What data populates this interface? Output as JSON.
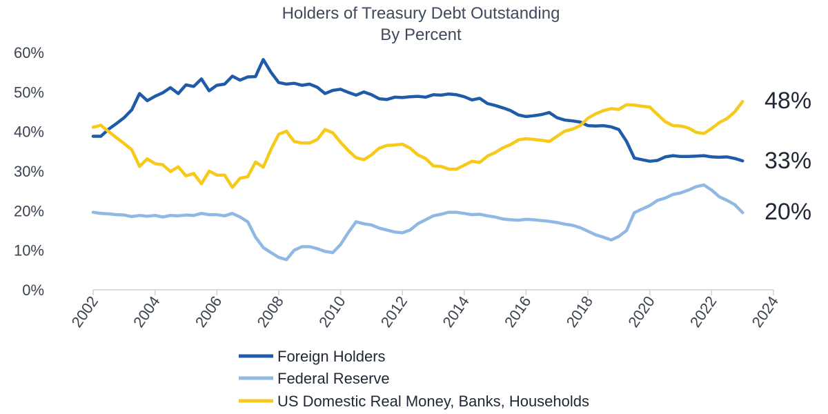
{
  "chart_data": {
    "type": "line",
    "title": "Holders of Treasury Debt Outstanding",
    "subtitle": "By Percent",
    "xlabel": "",
    "ylabel": "",
    "xlim": [
      2002,
      2024
    ],
    "ylim": [
      0,
      60
    ],
    "y_ticks": [
      "0%",
      "10%",
      "20%",
      "30%",
      "40%",
      "50%",
      "60%"
    ],
    "x_ticks": [
      "2002",
      "2004",
      "2006",
      "2008",
      "2010",
      "2012",
      "2014",
      "2016",
      "2018",
      "2020",
      "2022",
      "2024"
    ],
    "grid": false,
    "legend_position": "bottom",
    "series": [
      {
        "name": "Foreign Holders",
        "color": "#1f5ba8",
        "end_label": "33%",
        "points": [
          [
            2002.0,
            38.8
          ],
          [
            2002.25,
            38.8
          ],
          [
            2002.5,
            40.6
          ],
          [
            2002.75,
            42.0
          ],
          [
            2003.0,
            43.5
          ],
          [
            2003.25,
            45.5
          ],
          [
            2003.5,
            49.6
          ],
          [
            2003.75,
            47.8
          ],
          [
            2004.0,
            48.9
          ],
          [
            2004.25,
            49.8
          ],
          [
            2004.5,
            51.1
          ],
          [
            2004.75,
            49.6
          ],
          [
            2005.0,
            51.8
          ],
          [
            2005.25,
            51.4
          ],
          [
            2005.5,
            53.3
          ],
          [
            2005.75,
            50.3
          ],
          [
            2006.0,
            51.7
          ],
          [
            2006.25,
            52.0
          ],
          [
            2006.5,
            54.0
          ],
          [
            2006.75,
            53.0
          ],
          [
            2007.0,
            53.8
          ],
          [
            2007.25,
            53.9
          ],
          [
            2007.5,
            58.2
          ],
          [
            2007.75,
            55.0
          ],
          [
            2008.0,
            52.4
          ],
          [
            2008.25,
            52.0
          ],
          [
            2008.5,
            52.2
          ],
          [
            2008.75,
            51.7
          ],
          [
            2009.0,
            52.0
          ],
          [
            2009.25,
            51.2
          ],
          [
            2009.5,
            49.6
          ],
          [
            2009.75,
            50.4
          ],
          [
            2010.0,
            50.7
          ],
          [
            2010.25,
            49.9
          ],
          [
            2010.5,
            49.2
          ],
          [
            2010.75,
            50.0
          ],
          [
            2011.0,
            49.3
          ],
          [
            2011.25,
            48.3
          ],
          [
            2011.5,
            48.1
          ],
          [
            2011.75,
            48.7
          ],
          [
            2012.0,
            48.6
          ],
          [
            2012.25,
            48.8
          ],
          [
            2012.5,
            48.9
          ],
          [
            2012.75,
            48.7
          ],
          [
            2013.0,
            49.3
          ],
          [
            2013.25,
            49.2
          ],
          [
            2013.5,
            49.5
          ],
          [
            2013.75,
            49.3
          ],
          [
            2014.0,
            48.8
          ],
          [
            2014.25,
            48.0
          ],
          [
            2014.5,
            48.4
          ],
          [
            2014.75,
            47.1
          ],
          [
            2015.0,
            46.6
          ],
          [
            2015.25,
            46.0
          ],
          [
            2015.5,
            45.3
          ],
          [
            2015.75,
            44.2
          ],
          [
            2016.0,
            43.8
          ],
          [
            2016.25,
            44.0
          ],
          [
            2016.5,
            44.3
          ],
          [
            2016.75,
            44.8
          ],
          [
            2017.0,
            43.5
          ],
          [
            2017.25,
            42.9
          ],
          [
            2017.5,
            42.7
          ],
          [
            2017.75,
            42.4
          ],
          [
            2018.0,
            41.5
          ],
          [
            2018.25,
            41.4
          ],
          [
            2018.5,
            41.5
          ],
          [
            2018.75,
            41.2
          ],
          [
            2019.0,
            40.5
          ],
          [
            2019.25,
            37.5
          ],
          [
            2019.5,
            33.3
          ],
          [
            2019.75,
            32.9
          ],
          [
            2020.0,
            32.5
          ],
          [
            2020.25,
            32.7
          ],
          [
            2020.5,
            33.6
          ],
          [
            2020.75,
            33.9
          ],
          [
            2021.0,
            33.7
          ],
          [
            2021.25,
            33.7
          ],
          [
            2021.5,
            33.8
          ],
          [
            2021.75,
            33.9
          ],
          [
            2022.0,
            33.6
          ],
          [
            2022.25,
            33.5
          ],
          [
            2022.5,
            33.6
          ],
          [
            2022.75,
            33.2
          ],
          [
            2023.0,
            32.6
          ]
        ]
      },
      {
        "name": "Federal Reserve",
        "color": "#8fb9e3",
        "end_label": "20%",
        "points": [
          [
            2002.0,
            19.6
          ],
          [
            2002.25,
            19.3
          ],
          [
            2002.5,
            19.2
          ],
          [
            2002.75,
            19.0
          ],
          [
            2003.0,
            18.9
          ],
          [
            2003.25,
            18.5
          ],
          [
            2003.5,
            18.8
          ],
          [
            2003.75,
            18.6
          ],
          [
            2004.0,
            18.8
          ],
          [
            2004.25,
            18.4
          ],
          [
            2004.5,
            18.8
          ],
          [
            2004.75,
            18.7
          ],
          [
            2005.0,
            18.9
          ],
          [
            2005.25,
            18.8
          ],
          [
            2005.5,
            19.3
          ],
          [
            2005.75,
            19.0
          ],
          [
            2006.0,
            19.0
          ],
          [
            2006.25,
            18.7
          ],
          [
            2006.5,
            19.3
          ],
          [
            2006.75,
            18.4
          ],
          [
            2007.0,
            17.2
          ],
          [
            2007.25,
            13.3
          ],
          [
            2007.5,
            10.7
          ],
          [
            2007.75,
            9.4
          ],
          [
            2008.0,
            8.2
          ],
          [
            2008.25,
            7.6
          ],
          [
            2008.5,
            10.0
          ],
          [
            2008.75,
            10.9
          ],
          [
            2009.0,
            10.9
          ],
          [
            2009.25,
            10.4
          ],
          [
            2009.5,
            9.7
          ],
          [
            2009.75,
            9.4
          ],
          [
            2010.0,
            11.4
          ],
          [
            2010.25,
            14.5
          ],
          [
            2010.5,
            17.2
          ],
          [
            2010.75,
            16.7
          ],
          [
            2011.0,
            16.4
          ],
          [
            2011.25,
            15.6
          ],
          [
            2011.5,
            15.1
          ],
          [
            2011.75,
            14.6
          ],
          [
            2012.0,
            14.4
          ],
          [
            2012.25,
            15.1
          ],
          [
            2012.5,
            16.7
          ],
          [
            2012.75,
            17.7
          ],
          [
            2013.0,
            18.7
          ],
          [
            2013.25,
            19.1
          ],
          [
            2013.5,
            19.6
          ],
          [
            2013.75,
            19.6
          ],
          [
            2014.0,
            19.3
          ],
          [
            2014.25,
            19.0
          ],
          [
            2014.5,
            19.1
          ],
          [
            2014.75,
            18.7
          ],
          [
            2015.0,
            18.4
          ],
          [
            2015.25,
            17.9
          ],
          [
            2015.5,
            17.7
          ],
          [
            2015.75,
            17.6
          ],
          [
            2016.0,
            17.8
          ],
          [
            2016.25,
            17.7
          ],
          [
            2016.5,
            17.5
          ],
          [
            2016.75,
            17.3
          ],
          [
            2017.0,
            17.0
          ],
          [
            2017.25,
            16.6
          ],
          [
            2017.5,
            16.3
          ],
          [
            2017.75,
            15.7
          ],
          [
            2018.0,
            14.8
          ],
          [
            2018.25,
            13.9
          ],
          [
            2018.5,
            13.3
          ],
          [
            2018.75,
            12.6
          ],
          [
            2019.0,
            13.5
          ],
          [
            2019.25,
            15.0
          ],
          [
            2019.5,
            19.5
          ],
          [
            2019.75,
            20.4
          ],
          [
            2020.0,
            21.3
          ],
          [
            2020.25,
            22.6
          ],
          [
            2020.5,
            23.2
          ],
          [
            2020.75,
            24.1
          ],
          [
            2021.0,
            24.5
          ],
          [
            2021.25,
            25.2
          ],
          [
            2021.5,
            26.1
          ],
          [
            2021.75,
            26.5
          ],
          [
            2022.0,
            25.2
          ],
          [
            2022.25,
            23.5
          ],
          [
            2022.5,
            22.6
          ],
          [
            2022.75,
            21.5
          ],
          [
            2023.0,
            19.5
          ]
        ]
      },
      {
        "name": "US Domestic Real Money, Banks, Households",
        "color": "#f7c91a",
        "end_label": "48%",
        "points": [
          [
            2002.0,
            41.1
          ],
          [
            2002.25,
            41.6
          ],
          [
            2002.5,
            40.0
          ],
          [
            2002.75,
            38.5
          ],
          [
            2003.0,
            37.0
          ],
          [
            2003.25,
            35.4
          ],
          [
            2003.5,
            31.2
          ],
          [
            2003.75,
            33.1
          ],
          [
            2004.0,
            31.9
          ],
          [
            2004.25,
            31.6
          ],
          [
            2004.5,
            29.9
          ],
          [
            2004.75,
            31.1
          ],
          [
            2005.0,
            28.8
          ],
          [
            2005.25,
            29.4
          ],
          [
            2005.5,
            26.8
          ],
          [
            2005.75,
            30.0
          ],
          [
            2006.0,
            29.0
          ],
          [
            2006.25,
            29.0
          ],
          [
            2006.5,
            25.9
          ],
          [
            2006.75,
            28.2
          ],
          [
            2007.0,
            28.6
          ],
          [
            2007.25,
            32.3
          ],
          [
            2007.5,
            31.0
          ],
          [
            2007.75,
            35.5
          ],
          [
            2008.0,
            39.3
          ],
          [
            2008.25,
            40.1
          ],
          [
            2008.5,
            37.5
          ],
          [
            2008.75,
            37.1
          ],
          [
            2009.0,
            37.1
          ],
          [
            2009.25,
            38.0
          ],
          [
            2009.5,
            40.5
          ],
          [
            2009.75,
            39.7
          ],
          [
            2010.0,
            37.3
          ],
          [
            2010.25,
            35.2
          ],
          [
            2010.5,
            33.4
          ],
          [
            2010.75,
            32.9
          ],
          [
            2011.0,
            34.1
          ],
          [
            2011.25,
            35.8
          ],
          [
            2011.5,
            36.5
          ],
          [
            2011.75,
            36.6
          ],
          [
            2012.0,
            36.8
          ],
          [
            2012.25,
            35.8
          ],
          [
            2012.5,
            34.1
          ],
          [
            2012.75,
            33.2
          ],
          [
            2013.0,
            31.3
          ],
          [
            2013.25,
            31.2
          ],
          [
            2013.5,
            30.5
          ],
          [
            2013.75,
            30.5
          ],
          [
            2014.0,
            31.5
          ],
          [
            2014.25,
            32.5
          ],
          [
            2014.5,
            32.2
          ],
          [
            2014.75,
            33.8
          ],
          [
            2015.0,
            34.7
          ],
          [
            2015.25,
            35.9
          ],
          [
            2015.5,
            36.7
          ],
          [
            2015.75,
            37.9
          ],
          [
            2016.0,
            38.2
          ],
          [
            2016.25,
            38.0
          ],
          [
            2016.5,
            37.8
          ],
          [
            2016.75,
            37.5
          ],
          [
            2017.0,
            38.8
          ],
          [
            2017.25,
            40.1
          ],
          [
            2017.5,
            40.6
          ],
          [
            2017.75,
            41.5
          ],
          [
            2018.0,
            43.4
          ],
          [
            2018.25,
            44.5
          ],
          [
            2018.5,
            45.3
          ],
          [
            2018.75,
            45.8
          ],
          [
            2019.0,
            45.6
          ],
          [
            2019.25,
            46.8
          ],
          [
            2019.5,
            46.7
          ],
          [
            2019.75,
            46.4
          ],
          [
            2020.0,
            46.2
          ],
          [
            2020.25,
            44.3
          ],
          [
            2020.5,
            42.5
          ],
          [
            2020.75,
            41.5
          ],
          [
            2021.0,
            41.4
          ],
          [
            2021.25,
            40.9
          ],
          [
            2021.5,
            39.8
          ],
          [
            2021.75,
            39.5
          ],
          [
            2022.0,
            40.8
          ],
          [
            2022.25,
            42.3
          ],
          [
            2022.5,
            43.3
          ],
          [
            2022.75,
            45.0
          ],
          [
            2023.0,
            47.6
          ]
        ]
      }
    ]
  }
}
